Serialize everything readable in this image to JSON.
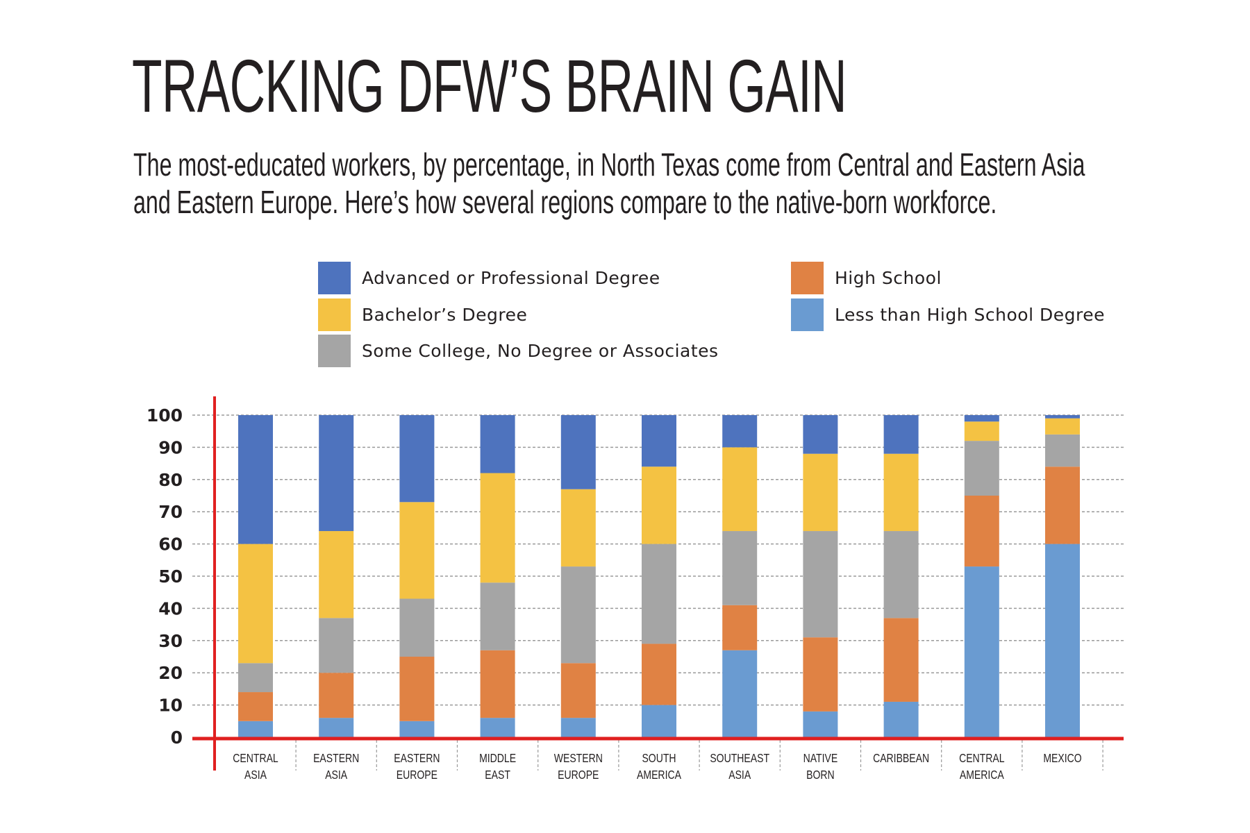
{
  "title": "TRACKING DFW’S BRAIN GAIN",
  "subtitle_lines": [
    "The most-educated workers, by percentage, in North Texas come from Central and Eastern Asia",
    "and Eastern Europe. Here’s how several regions compare to the native-born workforce."
  ],
  "chart_data": {
    "type": "bar",
    "stacked": true,
    "title": "",
    "xlabel": "",
    "ylabel": "",
    "ylim": [
      0,
      100
    ],
    "yticks": [
      0,
      10,
      20,
      30,
      40,
      50,
      60,
      70,
      80,
      90,
      100
    ],
    "grid": true,
    "legend_placement": "top",
    "categories": [
      [
        "CENTRAL",
        "ASIA"
      ],
      [
        "EASTERN",
        "ASIA"
      ],
      [
        "EASTERN",
        "EUROPE"
      ],
      [
        "MIDDLE",
        "EAST"
      ],
      [
        "WESTERN",
        "EUROPE"
      ],
      [
        "SOUTH",
        "AMERICA"
      ],
      [
        "SOUTHEAST",
        "ASIA"
      ],
      [
        "NATIVE",
        "BORN"
      ],
      [
        "CARIBBEAN"
      ],
      [
        "CENTRAL",
        "AMERICA"
      ],
      [
        "MEXICO"
      ]
    ],
    "series": [
      {
        "name": "Less than High School Degree",
        "color": "#6a9bd1",
        "values": [
          5,
          6,
          5,
          6,
          6,
          10,
          27,
          8,
          11,
          53,
          60
        ]
      },
      {
        "name": "High School",
        "color": "#e08244",
        "values": [
          9,
          14,
          20,
          21,
          17,
          19,
          14,
          23,
          26,
          22,
          24
        ]
      },
      {
        "name": "Some College, No Degree or Associates",
        "color": "#a5a5a5",
        "values": [
          9,
          17,
          18,
          21,
          30,
          31,
          23,
          33,
          27,
          17,
          10
        ]
      },
      {
        "name": "Bachelor’s Degree",
        "color": "#f4c243",
        "values": [
          37,
          27,
          30,
          34,
          24,
          24,
          26,
          24,
          24,
          6,
          5
        ]
      },
      {
        "name": "Advanced or Professional Degree",
        "color": "#4e73be",
        "values": [
          40,
          36,
          27,
          18,
          23,
          16,
          10,
          12,
          12,
          2,
          1
        ]
      }
    ],
    "axis_color": "#e02020"
  }
}
